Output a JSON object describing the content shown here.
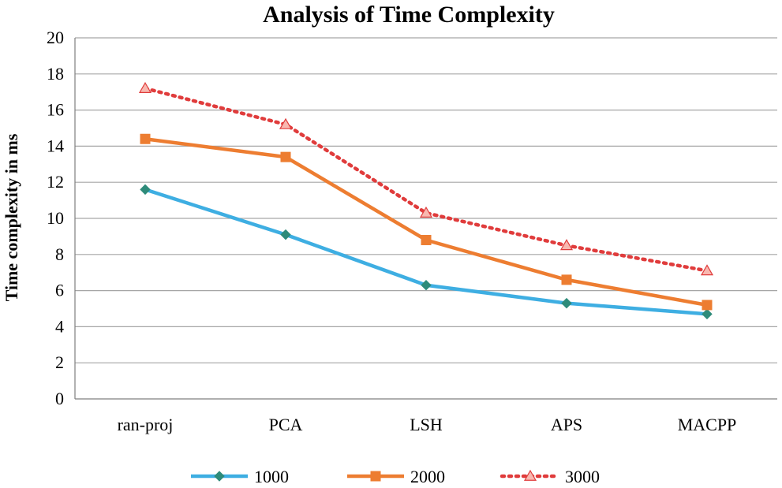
{
  "chart_data": {
    "type": "line",
    "title": "Analysis of Time Complexity",
    "xlabel": "",
    "ylabel": "Time complexity in ms",
    "categories": [
      "ran-proj",
      "PCA",
      "LSH",
      "APS",
      "MACPP"
    ],
    "ylim": [
      0,
      20
    ],
    "yticks": [
      0,
      2,
      4,
      6,
      8,
      10,
      12,
      14,
      16,
      18,
      20
    ],
    "grid": true,
    "legend_position": "bottom",
    "series": [
      {
        "name": "1000",
        "values": [
          11.6,
          9.1,
          6.3,
          5.3,
          4.7
        ],
        "color": "#3eaee2",
        "marker": "diamond",
        "line_style": "solid"
      },
      {
        "name": "2000",
        "values": [
          14.4,
          13.4,
          8.8,
          6.6,
          5.2
        ],
        "color": "#ed7d31",
        "marker": "square",
        "line_style": "solid"
      },
      {
        "name": "3000",
        "values": [
          17.2,
          15.2,
          10.3,
          8.5,
          7.1
        ],
        "color": "#e03c3c",
        "marker": "triangle",
        "line_style": "dotted"
      }
    ]
  }
}
